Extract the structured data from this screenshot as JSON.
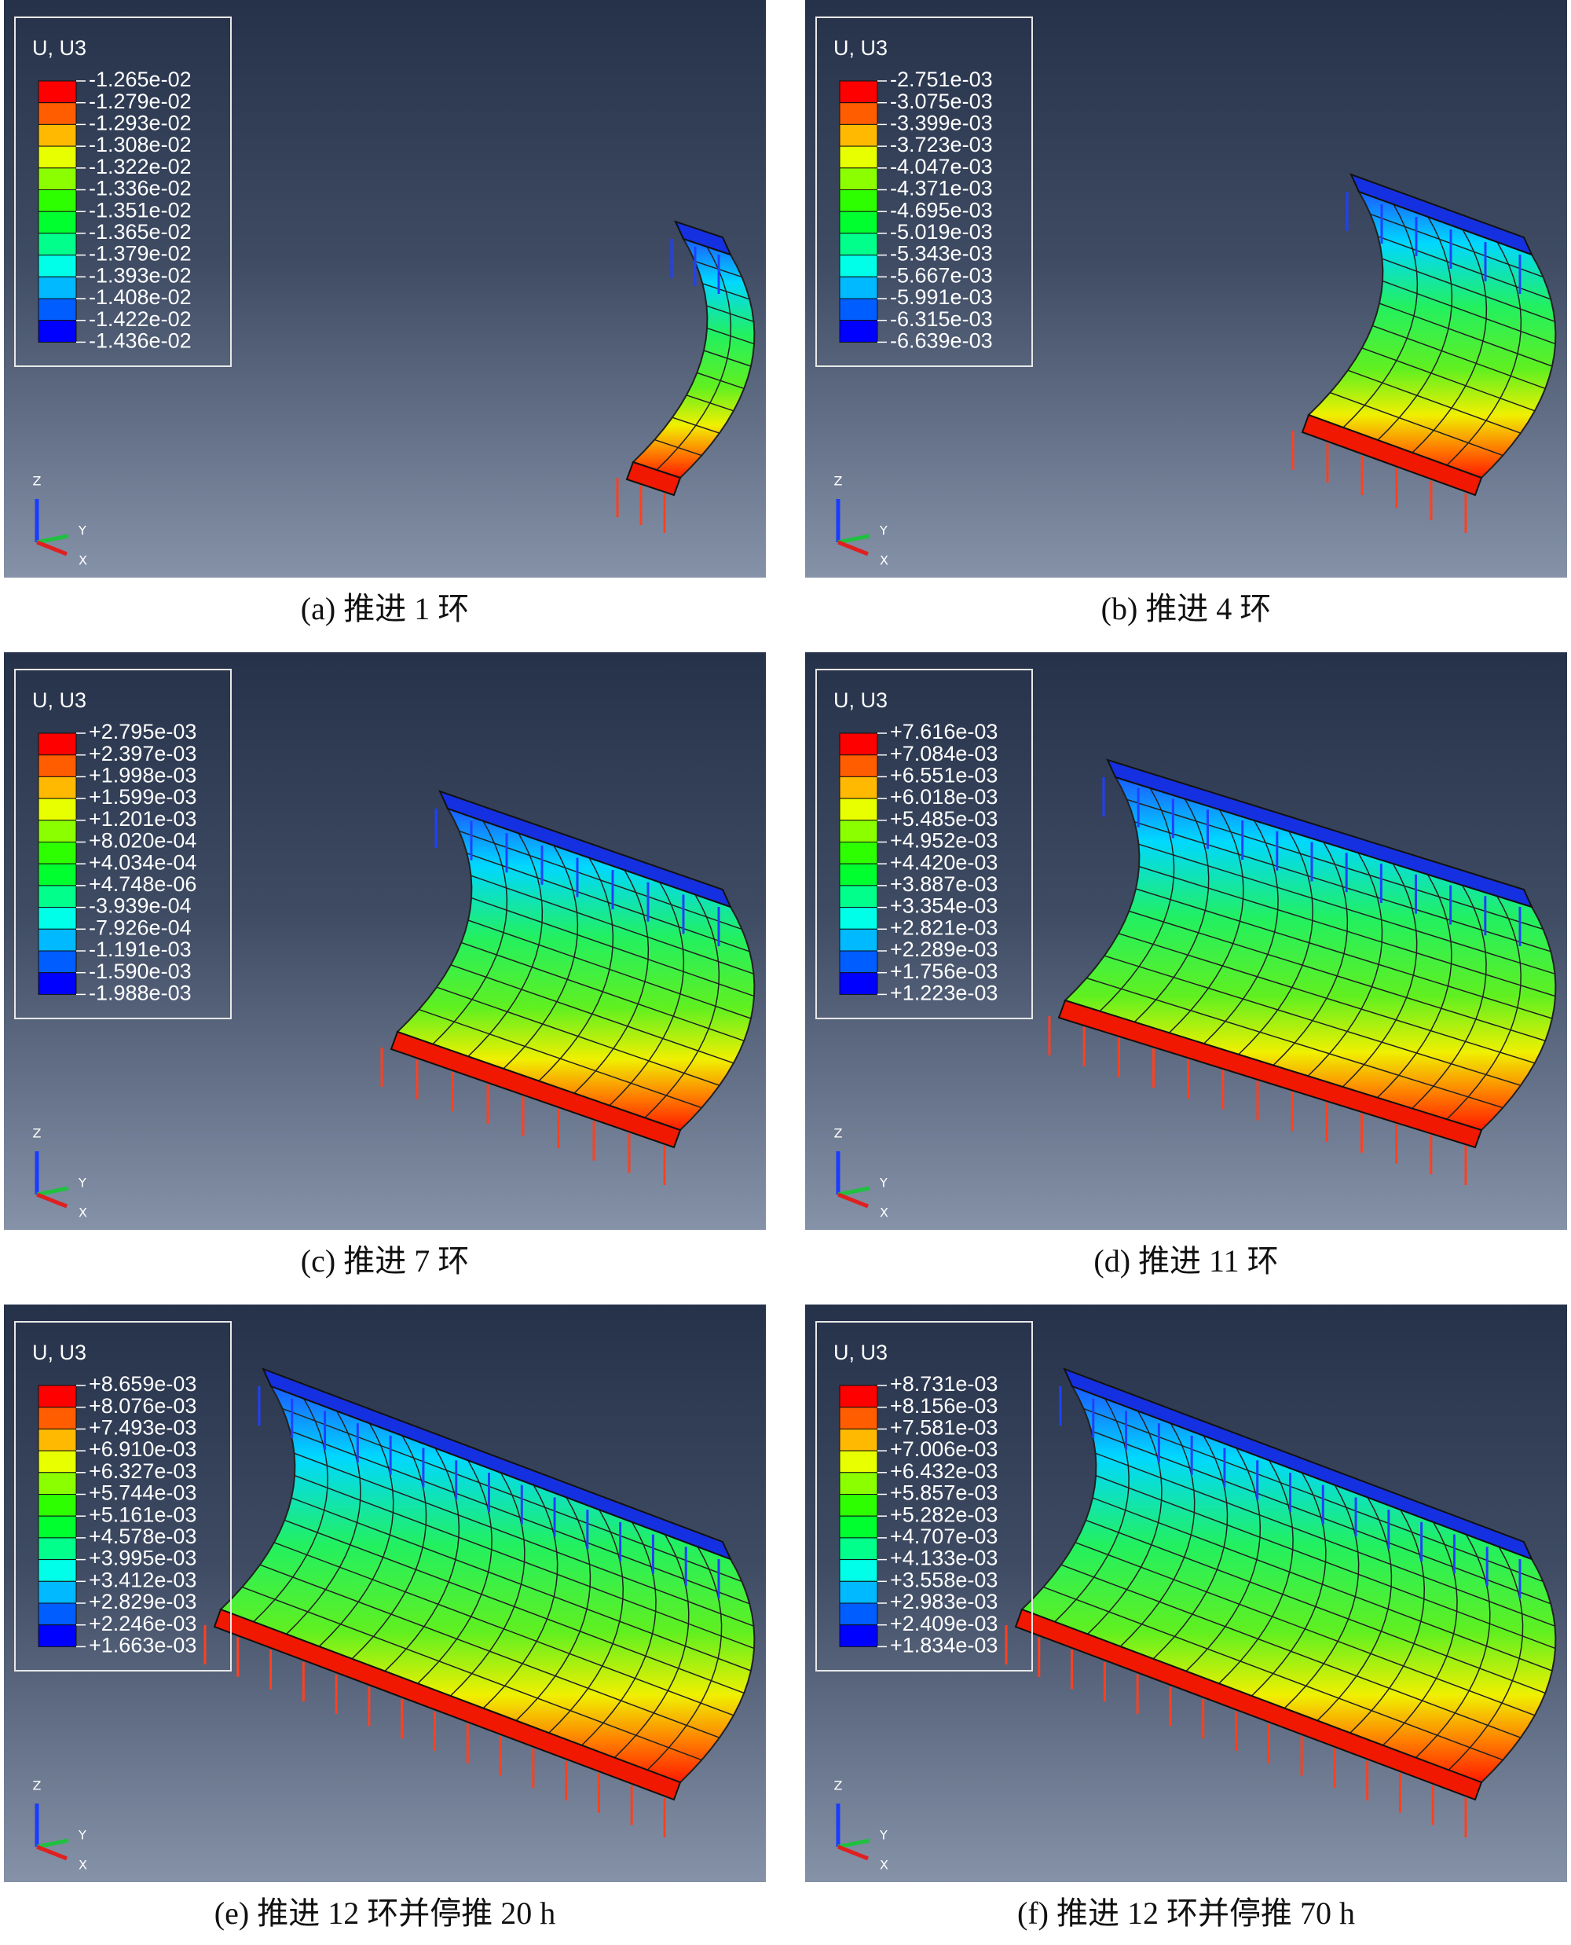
{
  "panels": [
    {
      "legend": {
        "title": "U, U3",
        "values": [
          "-1.265e-02",
          "-1.279e-02",
          "-1.293e-02",
          "-1.308e-02",
          "-1.322e-02",
          "-1.336e-02",
          "-1.351e-02",
          "-1.365e-02",
          "-1.379e-02",
          "-1.393e-02",
          "-1.408e-02",
          "-1.422e-02",
          "-1.436e-02"
        ]
      },
      "triad": {
        "z": "Z",
        "y": "Y",
        "x": "X"
      },
      "caption": "(a)  推进 1 环"
    },
    {
      "legend": {
        "title": "U, U3",
        "values": [
          "-2.751e-03",
          "-3.075e-03",
          "-3.399e-03",
          "-3.723e-03",
          "-4.047e-03",
          "-4.371e-03",
          "-4.695e-03",
          "-5.019e-03",
          "-5.343e-03",
          "-5.667e-03",
          "-5.991e-03",
          "-6.315e-03",
          "-6.639e-03"
        ]
      },
      "triad": {
        "z": "Z",
        "y": "Y",
        "x": "X"
      },
      "caption": "(b)  推进 4 环"
    },
    {
      "legend": {
        "title": "U, U3",
        "values": [
          "+2.795e-03",
          "+2.397e-03",
          "+1.998e-03",
          "+1.599e-03",
          "+1.201e-03",
          "+8.020e-04",
          "+4.034e-04",
          "+4.748e-06",
          "-3.939e-04",
          "-7.926e-04",
          "-1.191e-03",
          "-1.590e-03",
          "-1.988e-03"
        ]
      },
      "triad": {
        "z": "Z",
        "y": "Y",
        "x": "X"
      },
      "caption": "(c)  推进 7 环"
    },
    {
      "legend": {
        "title": "U, U3",
        "values": [
          "+7.616e-03",
          "+7.084e-03",
          "+6.551e-03",
          "+6.018e-03",
          "+5.485e-03",
          "+4.952e-03",
          "+4.420e-03",
          "+3.887e-03",
          "+3.354e-03",
          "+2.821e-03",
          "+2.289e-03",
          "+1.756e-03",
          "+1.223e-03"
        ]
      },
      "triad": {
        "z": "Z",
        "y": "Y",
        "x": "X"
      },
      "caption": "(d)  推进 11 环"
    },
    {
      "legend": {
        "title": "U, U3",
        "values": [
          "+8.659e-03",
          "+8.076e-03",
          "+7.493e-03",
          "+6.910e-03",
          "+6.327e-03",
          "+5.744e-03",
          "+5.161e-03",
          "+4.578e-03",
          "+3.995e-03",
          "+3.412e-03",
          "+2.829e-03",
          "+2.246e-03",
          "+1.663e-03"
        ]
      },
      "triad": {
        "z": "Z",
        "y": "Y",
        "x": "X"
      },
      "caption": "(e)  推进 12 环并停推 20 h"
    },
    {
      "legend": {
        "title": "U, U3",
        "values": [
          "+8.731e-03",
          "+8.156e-03",
          "+7.581e-03",
          "+7.006e-03",
          "+6.432e-03",
          "+5.857e-03",
          "+5.282e-03",
          "+4.707e-03",
          "+4.133e-03",
          "+3.558e-03",
          "+2.983e-03",
          "+2.409e-03",
          "+1.834e-03"
        ]
      },
      "triad": {
        "z": "Z",
        "y": "Y",
        "x": "X"
      },
      "caption": "(f)  推进 12 环并停推 70 h"
    }
  ]
}
